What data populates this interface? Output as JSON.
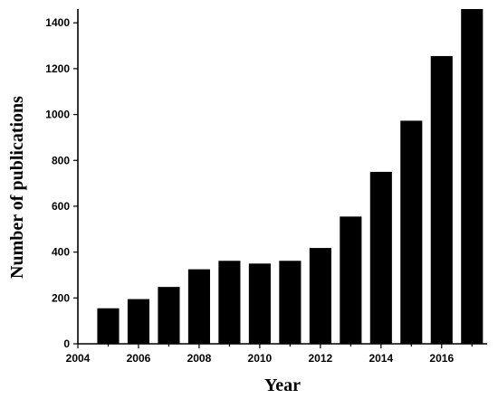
{
  "chart_data": {
    "type": "bar",
    "title": "",
    "xlabel": "Year",
    "ylabel": "Number of publications",
    "x": [
      2005,
      2006,
      2007,
      2008,
      2009,
      2010,
      2011,
      2012,
      2013,
      2014,
      2015,
      2016,
      2017
    ],
    "values": [
      155,
      195,
      248,
      325,
      362,
      350,
      362,
      418,
      555,
      750,
      973,
      1255,
      1460
    ],
    "xlim": [
      2004,
      2017.5
    ],
    "ylim": [
      0,
      1460
    ],
    "xticks": [
      2004,
      2006,
      2008,
      2010,
      2012,
      2014,
      2016
    ],
    "xtick_labels": [
      "2004",
      "2006",
      "2008",
      "2010",
      "2012",
      "2014",
      "2016"
    ],
    "yticks": [
      0,
      200,
      400,
      600,
      800,
      1000,
      1200,
      1400
    ],
    "ytick_labels": [
      "0",
      "200",
      "400",
      "600",
      "800",
      "1000",
      "1200",
      "1400"
    ],
    "bar_color": "#000000",
    "grid": false
  }
}
